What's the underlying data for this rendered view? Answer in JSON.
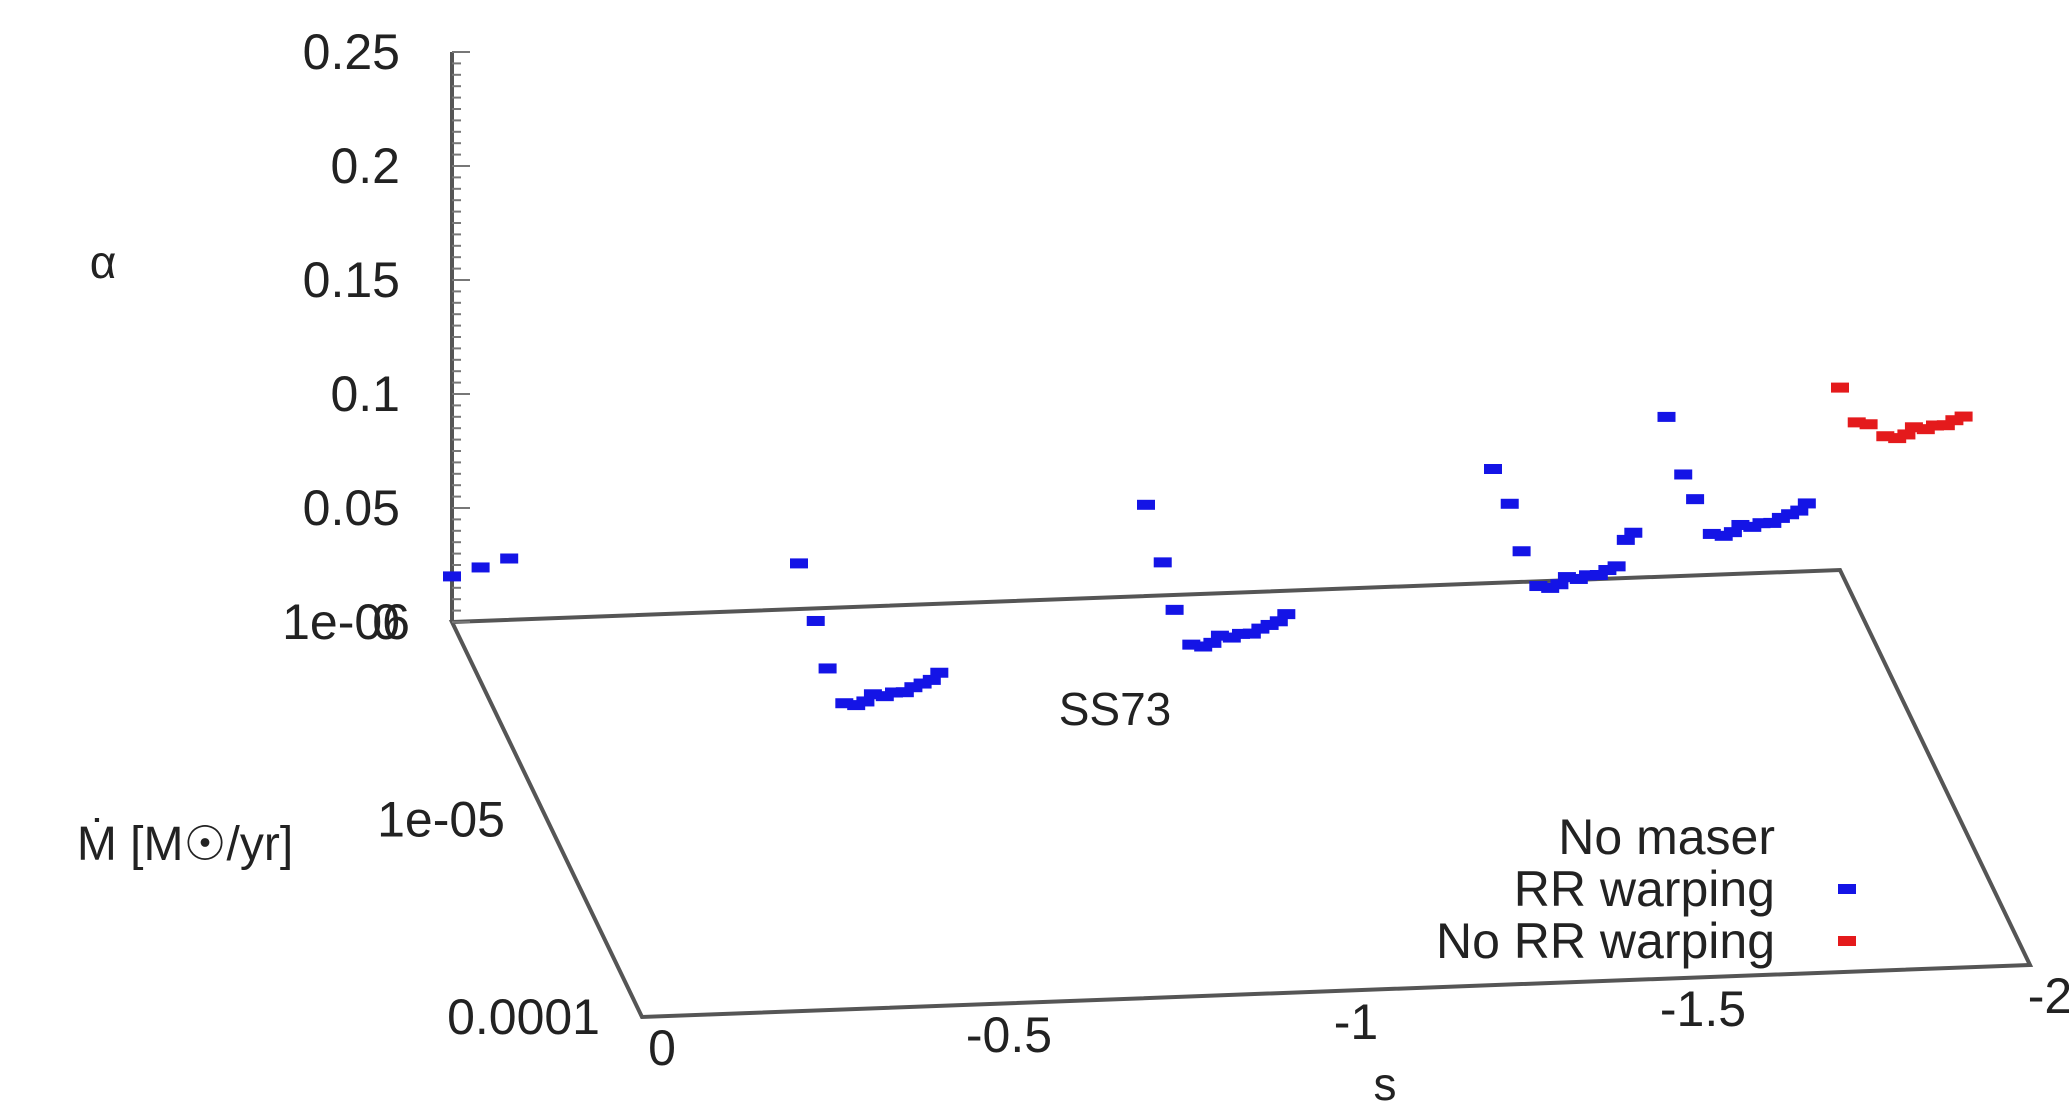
{
  "chart_data": {
    "type": "scatter",
    "projection": "3d",
    "title": "SS73",
    "xlabel": "s",
    "ylabel": "Ṁ [M☉/yr]",
    "zlabel": "α",
    "xlim": [
      0,
      -2
    ],
    "x_ticks": [
      "0",
      "-0.5",
      "-1",
      "-1.5",
      "-2"
    ],
    "ylim": [
      1e-06,
      0.0001
    ],
    "y_scale": "log",
    "y_ticks": [
      "1e-06",
      "1e-05",
      "0.0001"
    ],
    "zlim": [
      0,
      0.25
    ],
    "z_ticks": [
      "0",
      "0.05",
      "0.1",
      "0.15",
      "0.2",
      "0.25"
    ],
    "grid": false,
    "legend_position": "bottom-right",
    "series": [
      {
        "name": "No maser",
        "color": "#ffffff",
        "points": []
      },
      {
        "name": "RR warping",
        "color": "#1414e6",
        "points": [
          [
            0,
            1e-06,
            0.02
          ],
          [
            0,
            2e-06,
            0.05
          ],
          [
            0,
            4e-06,
            0.08
          ],
          [
            -0.5,
            1e-06,
            0.02
          ],
          [
            -0.5,
            1.5e-06,
            0.01
          ],
          [
            -0.5,
            2e-06,
            0.0
          ],
          [
            -0.5,
            3e-06,
            0.0
          ],
          [
            -0.5,
            4e-06,
            0.01
          ],
          [
            -0.5,
            5e-06,
            0.02
          ],
          [
            -0.5,
            6e-06,
            0.03
          ],
          [
            -0.5,
            8e-06,
            0.04
          ],
          [
            -0.5,
            1e-05,
            0.05
          ],
          [
            -0.5,
            1.3e-05,
            0.06
          ],
          [
            -0.5,
            1.6e-05,
            0.07
          ],
          [
            -0.5,
            2e-05,
            0.08
          ],
          [
            -0.5,
            2.5e-05,
            0.09
          ],
          [
            -0.5,
            3e-05,
            0.1
          ],
          [
            -1,
            1e-06,
            0.04
          ],
          [
            -1,
            1.5e-06,
            0.03
          ],
          [
            -1,
            2e-06,
            0.02
          ],
          [
            -1,
            3e-06,
            0.02
          ],
          [
            -1,
            4e-06,
            0.03
          ],
          [
            -1,
            5e-06,
            0.04
          ],
          [
            -1,
            6e-06,
            0.05
          ],
          [
            -1,
            8e-06,
            0.06
          ],
          [
            -1,
            1e-05,
            0.07
          ],
          [
            -1,
            1.3e-05,
            0.08
          ],
          [
            -1,
            1.6e-05,
            0.09
          ],
          [
            -1,
            2e-05,
            0.1
          ],
          [
            -1,
            2.5e-05,
            0.11
          ],
          [
            -1,
            3e-05,
            0.12
          ],
          [
            -1.5,
            1e-06,
            0.05
          ],
          [
            -1.5,
            1.5e-06,
            0.05
          ],
          [
            -1.5,
            2e-06,
            0.04
          ],
          [
            -1.5,
            3e-06,
            0.04
          ],
          [
            -1.5,
            4e-06,
            0.05
          ],
          [
            -1.5,
            5e-06,
            0.06
          ],
          [
            -1.5,
            6e-06,
            0.07
          ],
          [
            -1.5,
            8e-06,
            0.08
          ],
          [
            -1.5,
            1e-05,
            0.09
          ],
          [
            -1.5,
            1.3e-05,
            0.1
          ],
          [
            -1.5,
            1.6e-05,
            0.11
          ],
          [
            -1.5,
            2e-05,
            0.12
          ],
          [
            -1.5,
            2.5e-05,
            0.14
          ],
          [
            -1.5,
            3e-05,
            0.15
          ],
          [
            -1.75,
            1e-06,
            0.07
          ],
          [
            -1.75,
            1.5e-06,
            0.06
          ],
          [
            -1.75,
            2e-06,
            0.06
          ],
          [
            -1.75,
            3e-06,
            0.06
          ],
          [
            -1.75,
            4e-06,
            0.07
          ],
          [
            -1.75,
            5e-06,
            0.08
          ],
          [
            -1.75,
            6e-06,
            0.09
          ],
          [
            -1.75,
            8e-06,
            0.1
          ],
          [
            -1.75,
            1e-05,
            0.11
          ],
          [
            -1.75,
            1.3e-05,
            0.12
          ],
          [
            -1.75,
            1.6e-05,
            0.13
          ],
          [
            -1.75,
            2e-05,
            0.14
          ],
          [
            -1.75,
            2.5e-05,
            0.15
          ],
          [
            -1.75,
            3e-05,
            0.16
          ]
        ]
      },
      {
        "name": "No RR warping",
        "color": "#e41a1c",
        "points": [
          [
            -2,
            1e-06,
            0.08
          ],
          [
            -2,
            1.5e-06,
            0.08
          ],
          [
            -2,
            2e-06,
            0.09
          ],
          [
            -2,
            3e-06,
            0.1
          ],
          [
            -2,
            4e-06,
            0.11
          ],
          [
            -2,
            5e-06,
            0.12
          ],
          [
            -2,
            6e-06,
            0.13
          ],
          [
            -2,
            8e-06,
            0.14
          ],
          [
            -2,
            1e-05,
            0.15
          ],
          [
            -2,
            1.3e-05,
            0.16
          ],
          [
            -2,
            1.6e-05,
            0.17
          ],
          [
            -2,
            2e-05,
            0.18
          ]
        ]
      }
    ]
  }
}
